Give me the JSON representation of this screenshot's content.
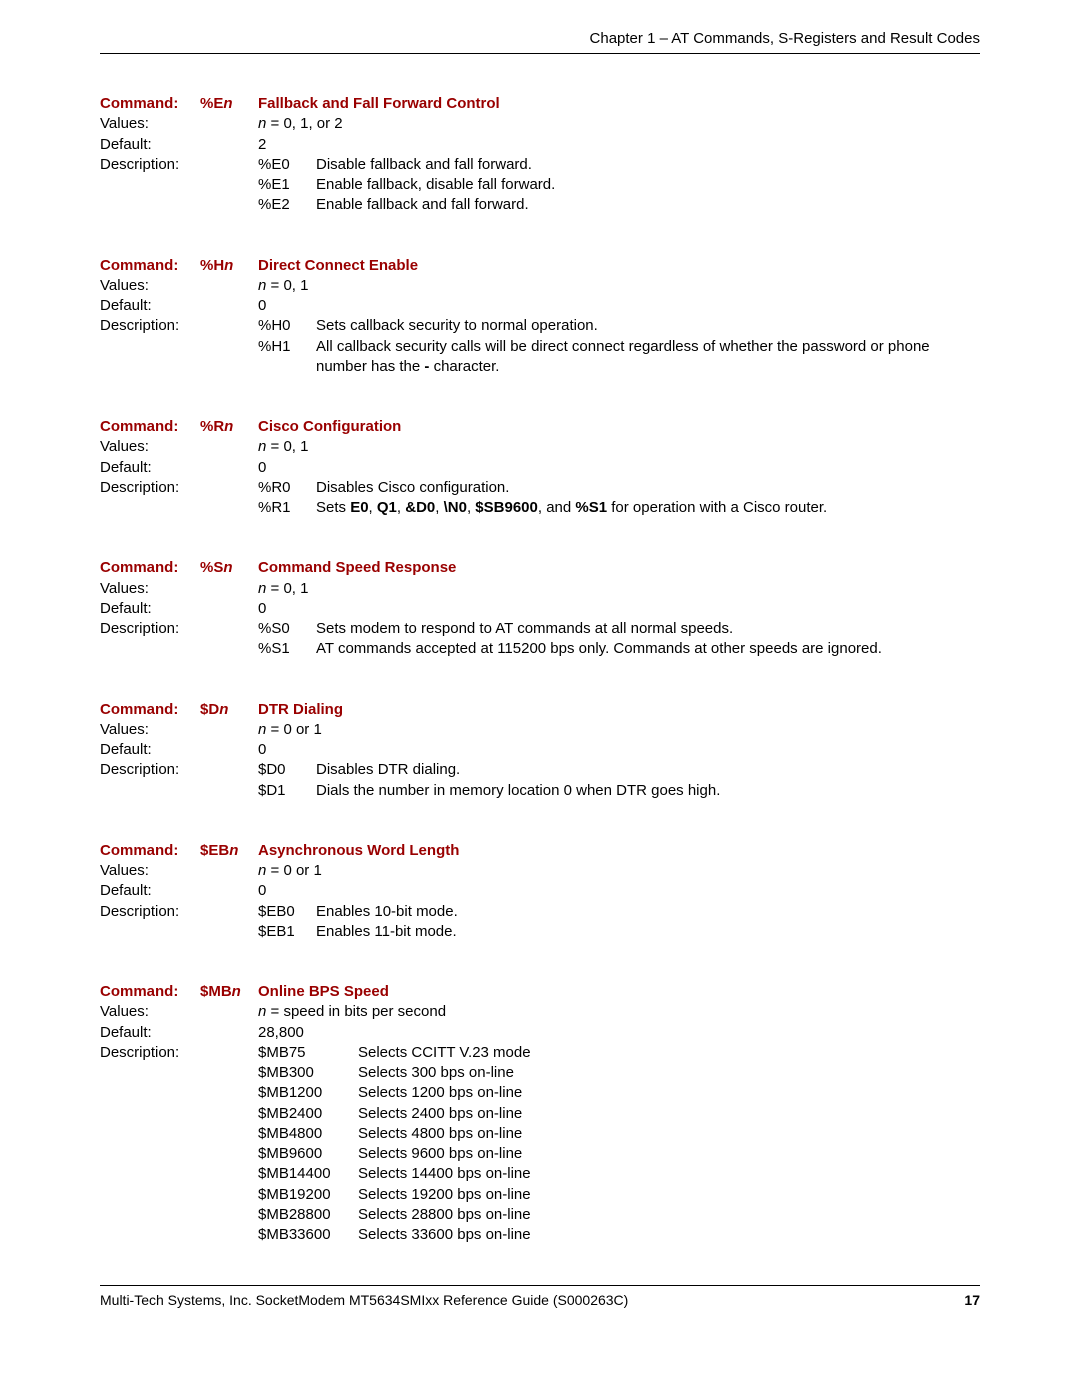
{
  "header": "Chapter 1 – AT Commands, S-Registers and Result Codes",
  "footer_left": "Multi-Tech Systems, Inc. SocketModem MT5634SMIxx Reference Guide (S000263C)",
  "footer_page": "17",
  "blocks": [
    {
      "code_pre": "%E",
      "code_n": "n",
      "title": "Fallback and Fall Forward Control",
      "values_html": "<span class='ital'>n</span> = 0, 1, or 2",
      "default": "2",
      "options": [
        {
          "k": "%E0",
          "v": "Disable fallback and fall forward."
        },
        {
          "k": "%E1",
          "v": "Enable fallback, disable fall forward."
        },
        {
          "k": "%E2",
          "v": "Enable fallback and fall forward."
        }
      ],
      "opt_wide": false
    },
    {
      "code_pre": "%H",
      "code_n": "n",
      "title": "Direct Connect Enable",
      "values_html": "<span class='ital'>n</span> = 0, 1",
      "default": "0",
      "options": [
        {
          "k": "%H0",
          "v": "Sets callback security to normal operation."
        },
        {
          "k": "%H1",
          "v": "All callback security calls will be direct connect regardless of whether the password or phone number has the <b>-</b> character."
        }
      ],
      "opt_wide": false
    },
    {
      "code_pre": "%R",
      "code_n": "n",
      "title": "Cisco Configuration",
      "values_html": "<span class='ital'>n</span> = 0, 1",
      "default": "0",
      "options": [
        {
          "k": "%R0",
          "v": "Disables Cisco configuration."
        },
        {
          "k": "%R1",
          "v": "Sets <b>E0</b>, <b>Q1</b>, <b>&amp;D0</b>, <b>\\N0</b>, <b>$SB9600</b>, and <b>%S1</b> for operation with a Cisco router."
        }
      ],
      "opt_wide": false
    },
    {
      "code_pre": "%S",
      "code_n": "n",
      "title": "Command Speed Response",
      "values_html": "<span class='ital'>n</span> = 0, 1",
      "default": "0",
      "options": [
        {
          "k": "%S0",
          "v": "Sets modem to respond to AT commands at all normal speeds."
        },
        {
          "k": "%S1",
          "v": "AT commands accepted at 115200 bps only. Commands at other speeds are ignored."
        }
      ],
      "opt_wide": false
    },
    {
      "code_pre": "$D",
      "code_n": "n",
      "title": "DTR Dialing",
      "values_html": "<span class='ital'>n</span> = 0 or 1",
      "default": "0",
      "options": [
        {
          "k": "$D0",
          "v": "Disables DTR dialing."
        },
        {
          "k": "$D1",
          "v": "Dials the number in memory location 0 when DTR goes high."
        }
      ],
      "opt_wide": false
    },
    {
      "code_pre": "$EB",
      "code_n": "n",
      "title": "Asynchronous Word Length",
      "values_html": "<span class='ital'>n</span> = 0 or 1",
      "default": "0",
      "options": [
        {
          "k": "$EB0",
          "v": "Enables 10-bit mode."
        },
        {
          "k": "$EB1",
          "v": "Enables 11-bit mode."
        }
      ],
      "opt_wide": false
    },
    {
      "code_pre": "$MB",
      "code_n": "n",
      "title": "Online BPS Speed",
      "values_html": "<span class='ital'>n</span> = speed in bits per second",
      "default": "28,800",
      "options": [
        {
          "k": "$MB75",
          "v": "Selects CCITT V.23 mode"
        },
        {
          "k": "$MB300",
          "v": "Selects 300 bps on-line"
        },
        {
          "k": "$MB1200",
          "v": "Selects 1200 bps on-line"
        },
        {
          "k": "$MB2400",
          "v": "Selects 2400 bps on-line"
        },
        {
          "k": "$MB4800",
          "v": "Selects 4800 bps on-line"
        },
        {
          "k": "$MB9600",
          "v": "Selects 9600 bps on-line"
        },
        {
          "k": "$MB14400",
          "v": "Selects 14400 bps on-line"
        },
        {
          "k": "$MB19200",
          "v": "Selects 19200 bps on-line"
        },
        {
          "k": "$MB28800",
          "v": "Selects 28800 bps on-line"
        },
        {
          "k": "$MB33600",
          "v": "Selects 33600 bps on-line"
        }
      ],
      "opt_wide": true
    }
  ],
  "labels": {
    "command": "Command:",
    "values": "Values:",
    "default": "Default:",
    "description": "Description:"
  }
}
